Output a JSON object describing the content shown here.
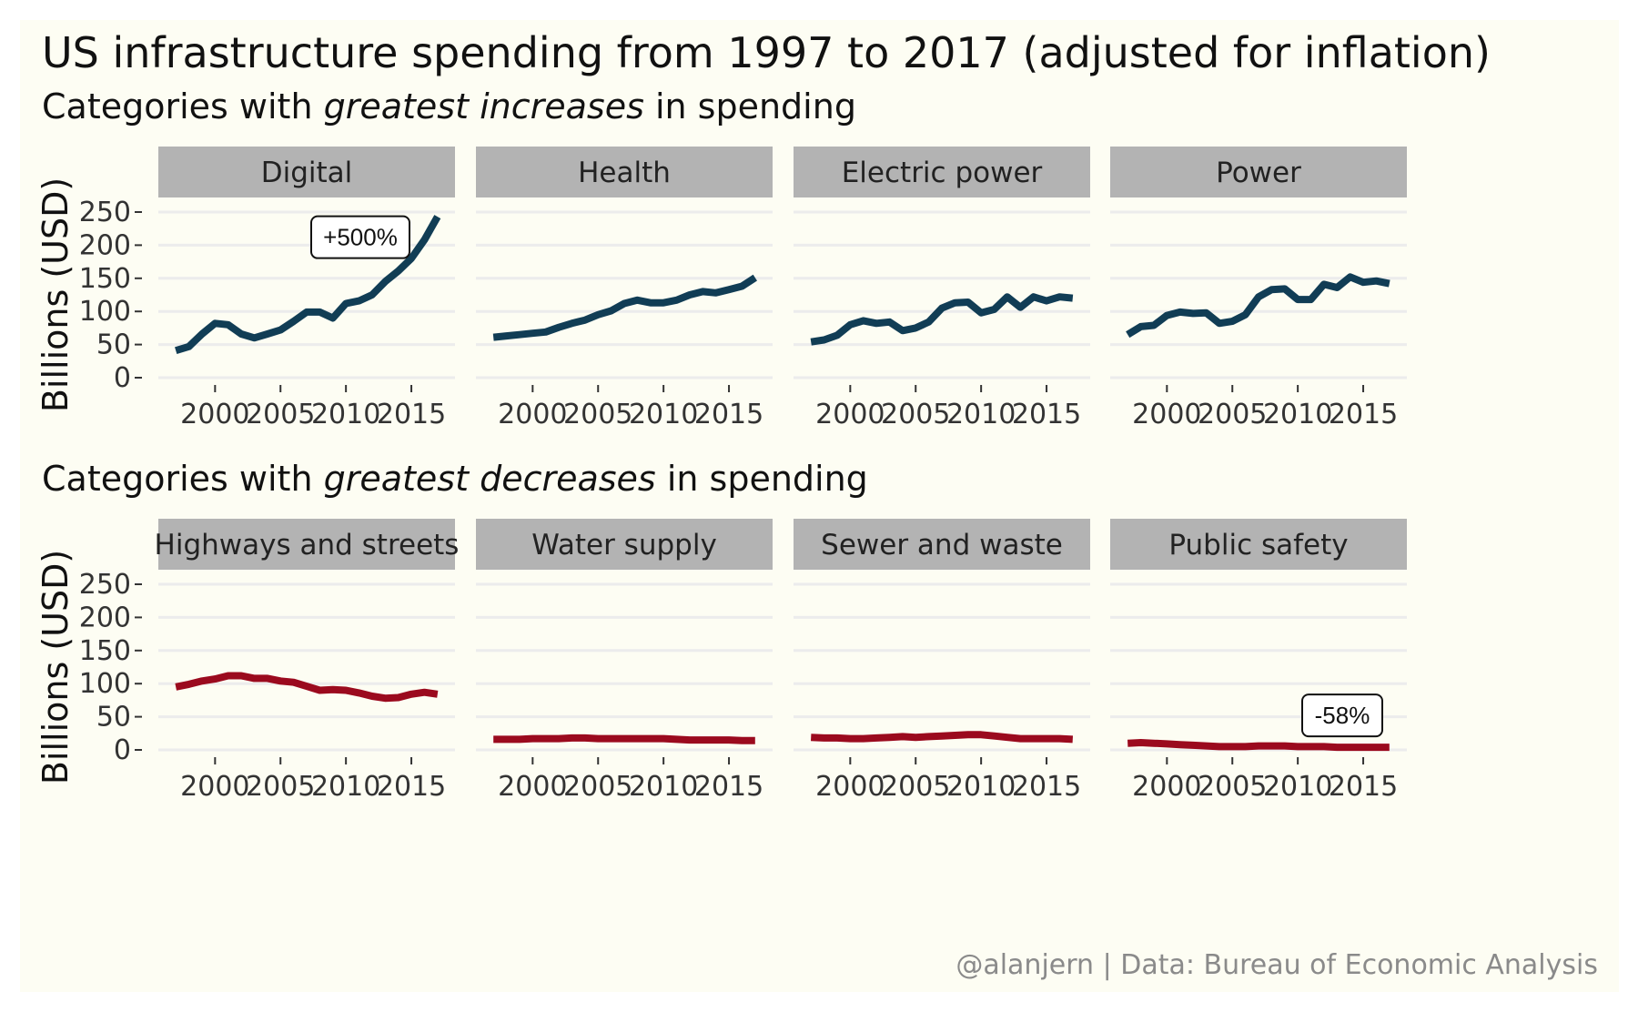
{
  "title": "US infrastructure spending from 1997 to 2017 (adjusted for inflation)",
  "caption": "@alanjern | Data: Bureau of Economic Analysis",
  "colors": {
    "increase": "#113d55",
    "decrease": "#9b0a1e",
    "strip": "#b3b3b3",
    "background": "#fdfdf3",
    "grid": "#ececec"
  },
  "chart_data": [
    {
      "type": "line",
      "subtitle_parts": [
        "Categories with ",
        "greatest increases",
        " in spending"
      ],
      "ylabel": "Billions (USD)",
      "ylim": [
        0,
        260
      ],
      "yticks": [
        0,
        50,
        100,
        150,
        200,
        250
      ],
      "xticks": [
        2000,
        2005,
        2010,
        2015
      ],
      "xlim": [
        1996.5,
        2017.5
      ],
      "color_key": "increase",
      "panels": [
        {
          "label": "Digital",
          "annotation": "+500%",
          "x": [
            1997,
            1998,
            1999,
            2000,
            2001,
            2002,
            2003,
            2004,
            2005,
            2006,
            2007,
            2008,
            2009,
            2010,
            2011,
            2012,
            2013,
            2014,
            2015,
            2016,
            2017
          ],
          "y": [
            41,
            47,
            66,
            82,
            80,
            66,
            60,
            66,
            72,
            85,
            99,
            99,
            90,
            112,
            116,
            125,
            145,
            161,
            180,
            208,
            243
          ]
        },
        {
          "label": "Health",
          "x": [
            1997,
            1998,
            1999,
            2000,
            2001,
            2002,
            2003,
            2004,
            2005,
            2006,
            2007,
            2008,
            2009,
            2010,
            2011,
            2012,
            2013,
            2014,
            2015,
            2016,
            2017
          ],
          "y": [
            61,
            63,
            65,
            67,
            69,
            76,
            82,
            87,
            95,
            101,
            112,
            117,
            113,
            113,
            117,
            125,
            130,
            128,
            133,
            138,
            151
          ]
        },
        {
          "label": "Electric power",
          "x": [
            1997,
            1998,
            1999,
            2000,
            2001,
            2002,
            2003,
            2004,
            2005,
            2006,
            2007,
            2008,
            2009,
            2010,
            2011,
            2012,
            2013,
            2014,
            2015,
            2016,
            2017
          ],
          "y": [
            54,
            57,
            64,
            80,
            86,
            82,
            84,
            71,
            75,
            84,
            105,
            113,
            114,
            98,
            103,
            122,
            106,
            122,
            116,
            122,
            120
          ]
        },
        {
          "label": "Power",
          "x": [
            1997,
            1998,
            1999,
            2000,
            2001,
            2002,
            2003,
            2004,
            2005,
            2006,
            2007,
            2008,
            2009,
            2010,
            2011,
            2012,
            2013,
            2014,
            2015,
            2016,
            2017
          ],
          "y": [
            65,
            77,
            79,
            94,
            99,
            97,
            98,
            82,
            85,
            95,
            122,
            133,
            134,
            118,
            118,
            141,
            136,
            152,
            144,
            146,
            142
          ]
        }
      ]
    },
    {
      "type": "line",
      "subtitle_parts": [
        "Categories with ",
        "greatest decreases",
        " in spending"
      ],
      "ylabel": "Billions (USD)",
      "ylim": [
        0,
        260
      ],
      "yticks": [
        0,
        50,
        100,
        150,
        200,
        250
      ],
      "xticks": [
        2000,
        2005,
        2010,
        2015
      ],
      "xlim": [
        1996.5,
        2017.5
      ],
      "color_key": "decrease",
      "panels": [
        {
          "label": "Highways and streets",
          "x": [
            1997,
            1998,
            1999,
            2000,
            2001,
            2002,
            2003,
            2004,
            2005,
            2006,
            2007,
            2008,
            2009,
            2010,
            2011,
            2012,
            2013,
            2014,
            2015,
            2016,
            2017
          ],
          "y": [
            95,
            99,
            104,
            107,
            112,
            112,
            108,
            108,
            104,
            102,
            96,
            90,
            91,
            90,
            86,
            81,
            78,
            79,
            84,
            87,
            84
          ]
        },
        {
          "label": "Water supply",
          "x": [
            1997,
            1998,
            1999,
            2000,
            2001,
            2002,
            2003,
            2004,
            2005,
            2006,
            2007,
            2008,
            2009,
            2010,
            2011,
            2012,
            2013,
            2014,
            2015,
            2016,
            2017
          ],
          "y": [
            16,
            16,
            16,
            17,
            17,
            17,
            18,
            18,
            17,
            17,
            17,
            17,
            17,
            17,
            16,
            15,
            15,
            15,
            15,
            14,
            14
          ]
        },
        {
          "label": "Sewer and waste",
          "x": [
            1997,
            1998,
            1999,
            2000,
            2001,
            2002,
            2003,
            2004,
            2005,
            2006,
            2007,
            2008,
            2009,
            2010,
            2011,
            2012,
            2013,
            2014,
            2015,
            2016,
            2017
          ],
          "y": [
            19,
            18,
            18,
            17,
            17,
            18,
            19,
            20,
            19,
            20,
            21,
            22,
            23,
            23,
            21,
            19,
            17,
            17,
            17,
            17,
            16
          ]
        },
        {
          "label": "Public safety",
          "annotation": "-58%",
          "x": [
            1997,
            1998,
            1999,
            2000,
            2001,
            2002,
            2003,
            2004,
            2005,
            2006,
            2007,
            2008,
            2009,
            2010,
            2011,
            2012,
            2013,
            2014,
            2015,
            2016,
            2017
          ],
          "y": [
            10,
            11,
            10,
            9,
            8,
            7,
            6,
            5,
            5,
            5,
            6,
            6,
            6,
            5,
            5,
            5,
            4,
            4,
            4,
            4,
            4
          ]
        }
      ]
    }
  ]
}
